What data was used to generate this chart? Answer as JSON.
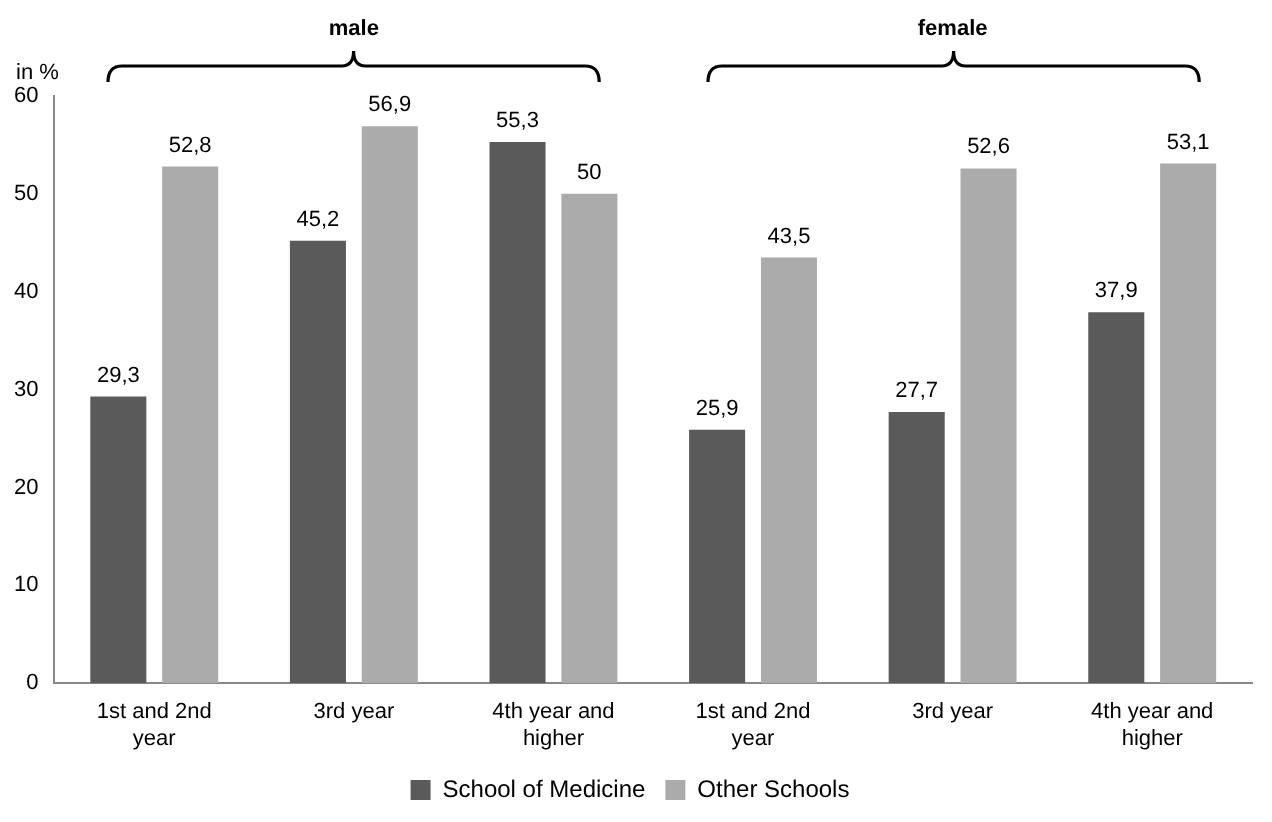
{
  "chart_data": {
    "type": "bar",
    "ylabel": "in %",
    "categories": [
      "1st and 2nd year",
      "3rd year",
      "4th year and higher",
      "1st and 2nd year",
      "3rd year",
      "4th year and higher"
    ],
    "series": [
      {
        "name": "School of Medicine",
        "color": "#5a5a5a",
        "values": [
          29.3,
          45.2,
          55.3,
          25.9,
          27.7,
          37.9
        ],
        "value_labels": [
          "29,3",
          "45,2",
          "55,3",
          "25,9",
          "27,7",
          "37,9"
        ]
      },
      {
        "name": "Other Schools",
        "color": "#ababab",
        "values": [
          52.8,
          56.9,
          50,
          43.5,
          52.6,
          53.1
        ],
        "value_labels": [
          "52,8",
          "56,9",
          "50",
          "43,5",
          "52,6",
          "53,1"
        ]
      }
    ],
    "ylim": [
      0,
      60
    ],
    "yticks": [
      0,
      10,
      20,
      30,
      40,
      50,
      60
    ],
    "grid": false,
    "legend": "bottom",
    "annotations": [
      "male",
      "female"
    ]
  }
}
